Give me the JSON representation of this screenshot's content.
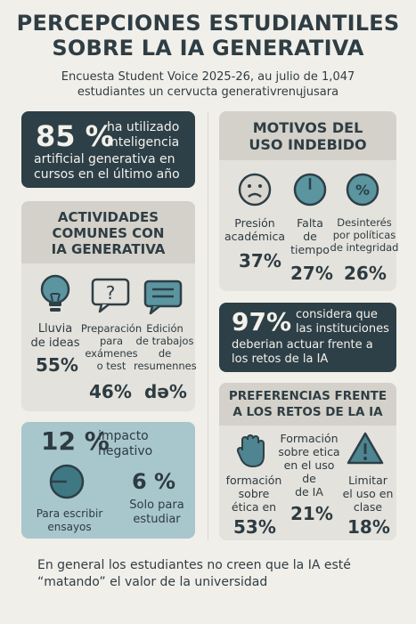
{
  "header": {
    "title_line1": "PERCEPCIONES ESTUDIANTILES",
    "title_line2": "SOBRE LA IA GENERATIVA",
    "subtitle_line1": "Encuesta Student Voice 2025-26, au julio de  1,047",
    "subtitle_line2": "estudiantes un cervucta generativrenųjusara"
  },
  "usage_card": {
    "percent": "85 %",
    "text_line1": "ha utilizado",
    "text_line2": "inteligencia",
    "text_line3": "artificial generativa en",
    "text_line4": "cursos en el último año"
  },
  "activities": {
    "heading_line1": "ACTIVIDADES",
    "heading_line2": "COMUNES CON",
    "heading_line3": "IA GENERATIVA",
    "items": [
      {
        "icon": "lightbulb-icon",
        "label_lines": [
          "Lluvia",
          "de ideas"
        ],
        "value": "55%"
      },
      {
        "icon": "question-bubble-icon",
        "label_lines": [
          "Preparación",
          "para",
          "exámenes",
          "o test"
        ],
        "value": "46%"
      },
      {
        "icon": "text-bubble-icon",
        "label_lines": [
          "Edición",
          "de trabajos",
          "de",
          "resumennes"
        ],
        "value": "də%"
      }
    ]
  },
  "impact_card": {
    "percent": "12 %",
    "label_line1": "impacto",
    "label_line2": "negativo",
    "left_caption_line1": "Para escribir",
    "left_caption_line2": "ensayos",
    "right_value": "6 %",
    "right_caption_line1": "Solo para",
    "right_caption_line2": "estudiar"
  },
  "misuse": {
    "heading_line1": "MOTIVOS DEL",
    "heading_line2": "USO INDEBIDO",
    "items": [
      {
        "icon": "sad-face-icon",
        "label_lines": [
          "Presión",
          "académica"
        ],
        "value": "37%"
      },
      {
        "icon": "clock-icon",
        "label_lines": [
          "Falta",
          "de",
          "tiempo"
        ],
        "value": "27%"
      },
      {
        "icon": "percent-icon",
        "label_lines": [
          "Desinterés",
          "por políticas",
          "de integridad"
        ],
        "value": "26%"
      }
    ]
  },
  "action_card": {
    "percent": "97%",
    "text_line1": "considera que",
    "text_line2": "las instituciones",
    "text_line3": "deberian actuar frente a",
    "text_line4": "los retos de la IA"
  },
  "preferences": {
    "heading_line1": "PREFERENCIAS FRENTE",
    "heading_line2": "A LOS RETOS DE LA IA",
    "items": [
      {
        "icon": "hand-icon",
        "label_lines": [
          "formación",
          "sobre",
          "ética en"
        ],
        "value": "53%"
      },
      {
        "icon": "",
        "label_lines": [
          "Formación",
          "sobre etica",
          "en el uso de",
          "de IA"
        ],
        "value": "21%"
      },
      {
        "icon": "warning-icon",
        "label_lines": [
          "Limitar",
          "el uso en",
          "clase"
        ],
        "value": "18%"
      }
    ]
  },
  "footer": {
    "line1": "En general los estudiantes no creen que la IA esté",
    "line2": "“matando” el valor de la universidad"
  },
  "colors": {
    "dark": "#2d3f47",
    "teal": "#4e8591",
    "panel": "#e4e2dc",
    "header_band": "#d3d1c9",
    "background": "#f1efe9"
  }
}
